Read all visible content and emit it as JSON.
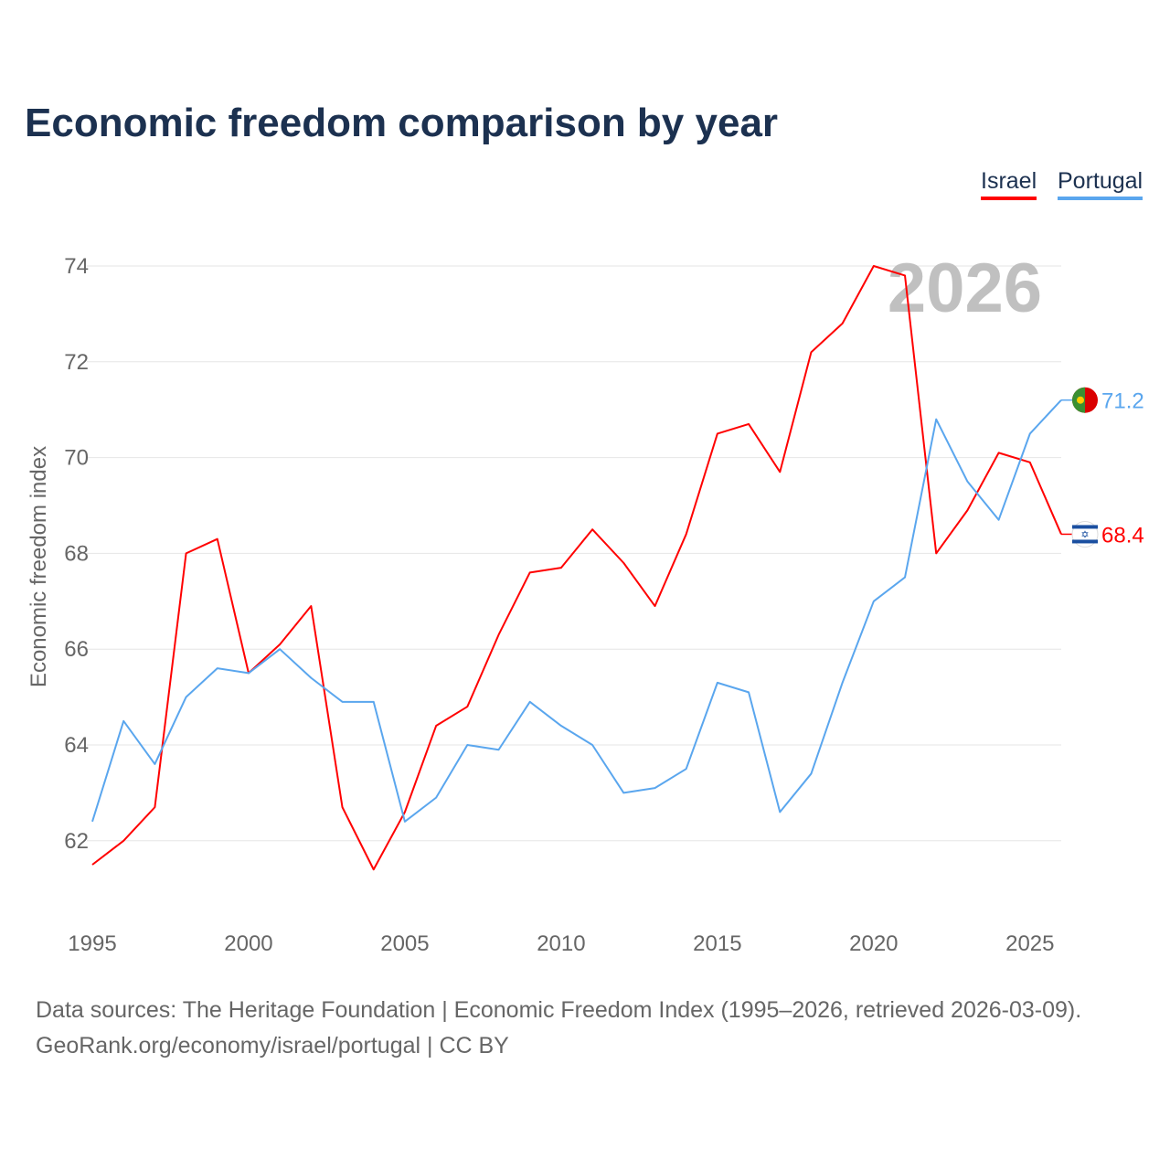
{
  "title": "Economic freedom comparison by year",
  "legend": [
    {
      "label": "Israel",
      "color": "#ff0000"
    },
    {
      "label": "Portugal",
      "color": "#5aa6ee"
    }
  ],
  "year_label": "2026",
  "footer": {
    "line1": "Data sources: The Heritage Foundation | Economic Freedom Index (1995–2026, retrieved 2026-03-09).",
    "line2": "GeoRank.org/economy/israel/portugal | CC BY"
  },
  "chart_data": {
    "type": "line",
    "title": "Economic freedom comparison by year",
    "xlabel": "",
    "ylabel": "Economic freedom index",
    "x": [
      1995,
      1996,
      1997,
      1998,
      1999,
      2000,
      2001,
      2002,
      2003,
      2004,
      2005,
      2006,
      2007,
      2008,
      2009,
      2010,
      2011,
      2012,
      2013,
      2014,
      2015,
      2016,
      2017,
      2018,
      2019,
      2020,
      2021,
      2022,
      2023,
      2024,
      2025,
      2026
    ],
    "xticks": [
      "1995",
      "2000",
      "2005",
      "2010",
      "2015",
      "2020",
      "2025"
    ],
    "yticks": [
      "62",
      "64",
      "66",
      "68",
      "70",
      "72",
      "74"
    ],
    "ylim": [
      61,
      75
    ],
    "grid": true,
    "legend_position": "top-right",
    "series": [
      {
        "name": "Israel",
        "color": "#ff0000",
        "end_label": "68.4",
        "values": [
          61.5,
          62.0,
          62.7,
          68.0,
          68.3,
          65.5,
          66.1,
          66.9,
          62.7,
          61.4,
          62.6,
          64.4,
          64.8,
          66.3,
          67.6,
          67.7,
          68.5,
          67.8,
          66.9,
          68.4,
          70.5,
          70.7,
          69.7,
          72.2,
          72.8,
          74.0,
          73.8,
          68.0,
          68.9,
          70.1,
          69.9,
          68.4
        ]
      },
      {
        "name": "Portugal",
        "color": "#5aa6ee",
        "end_label": "71.2",
        "values": [
          62.4,
          64.5,
          63.6,
          65.0,
          65.6,
          65.5,
          66.0,
          65.4,
          64.9,
          64.9,
          62.4,
          62.9,
          64.0,
          63.9,
          64.9,
          64.4,
          64.0,
          63.0,
          63.1,
          63.5,
          65.3,
          65.1,
          62.6,
          63.4,
          65.3,
          67.0,
          67.5,
          70.8,
          69.5,
          68.7,
          70.5,
          71.2
        ]
      }
    ]
  }
}
